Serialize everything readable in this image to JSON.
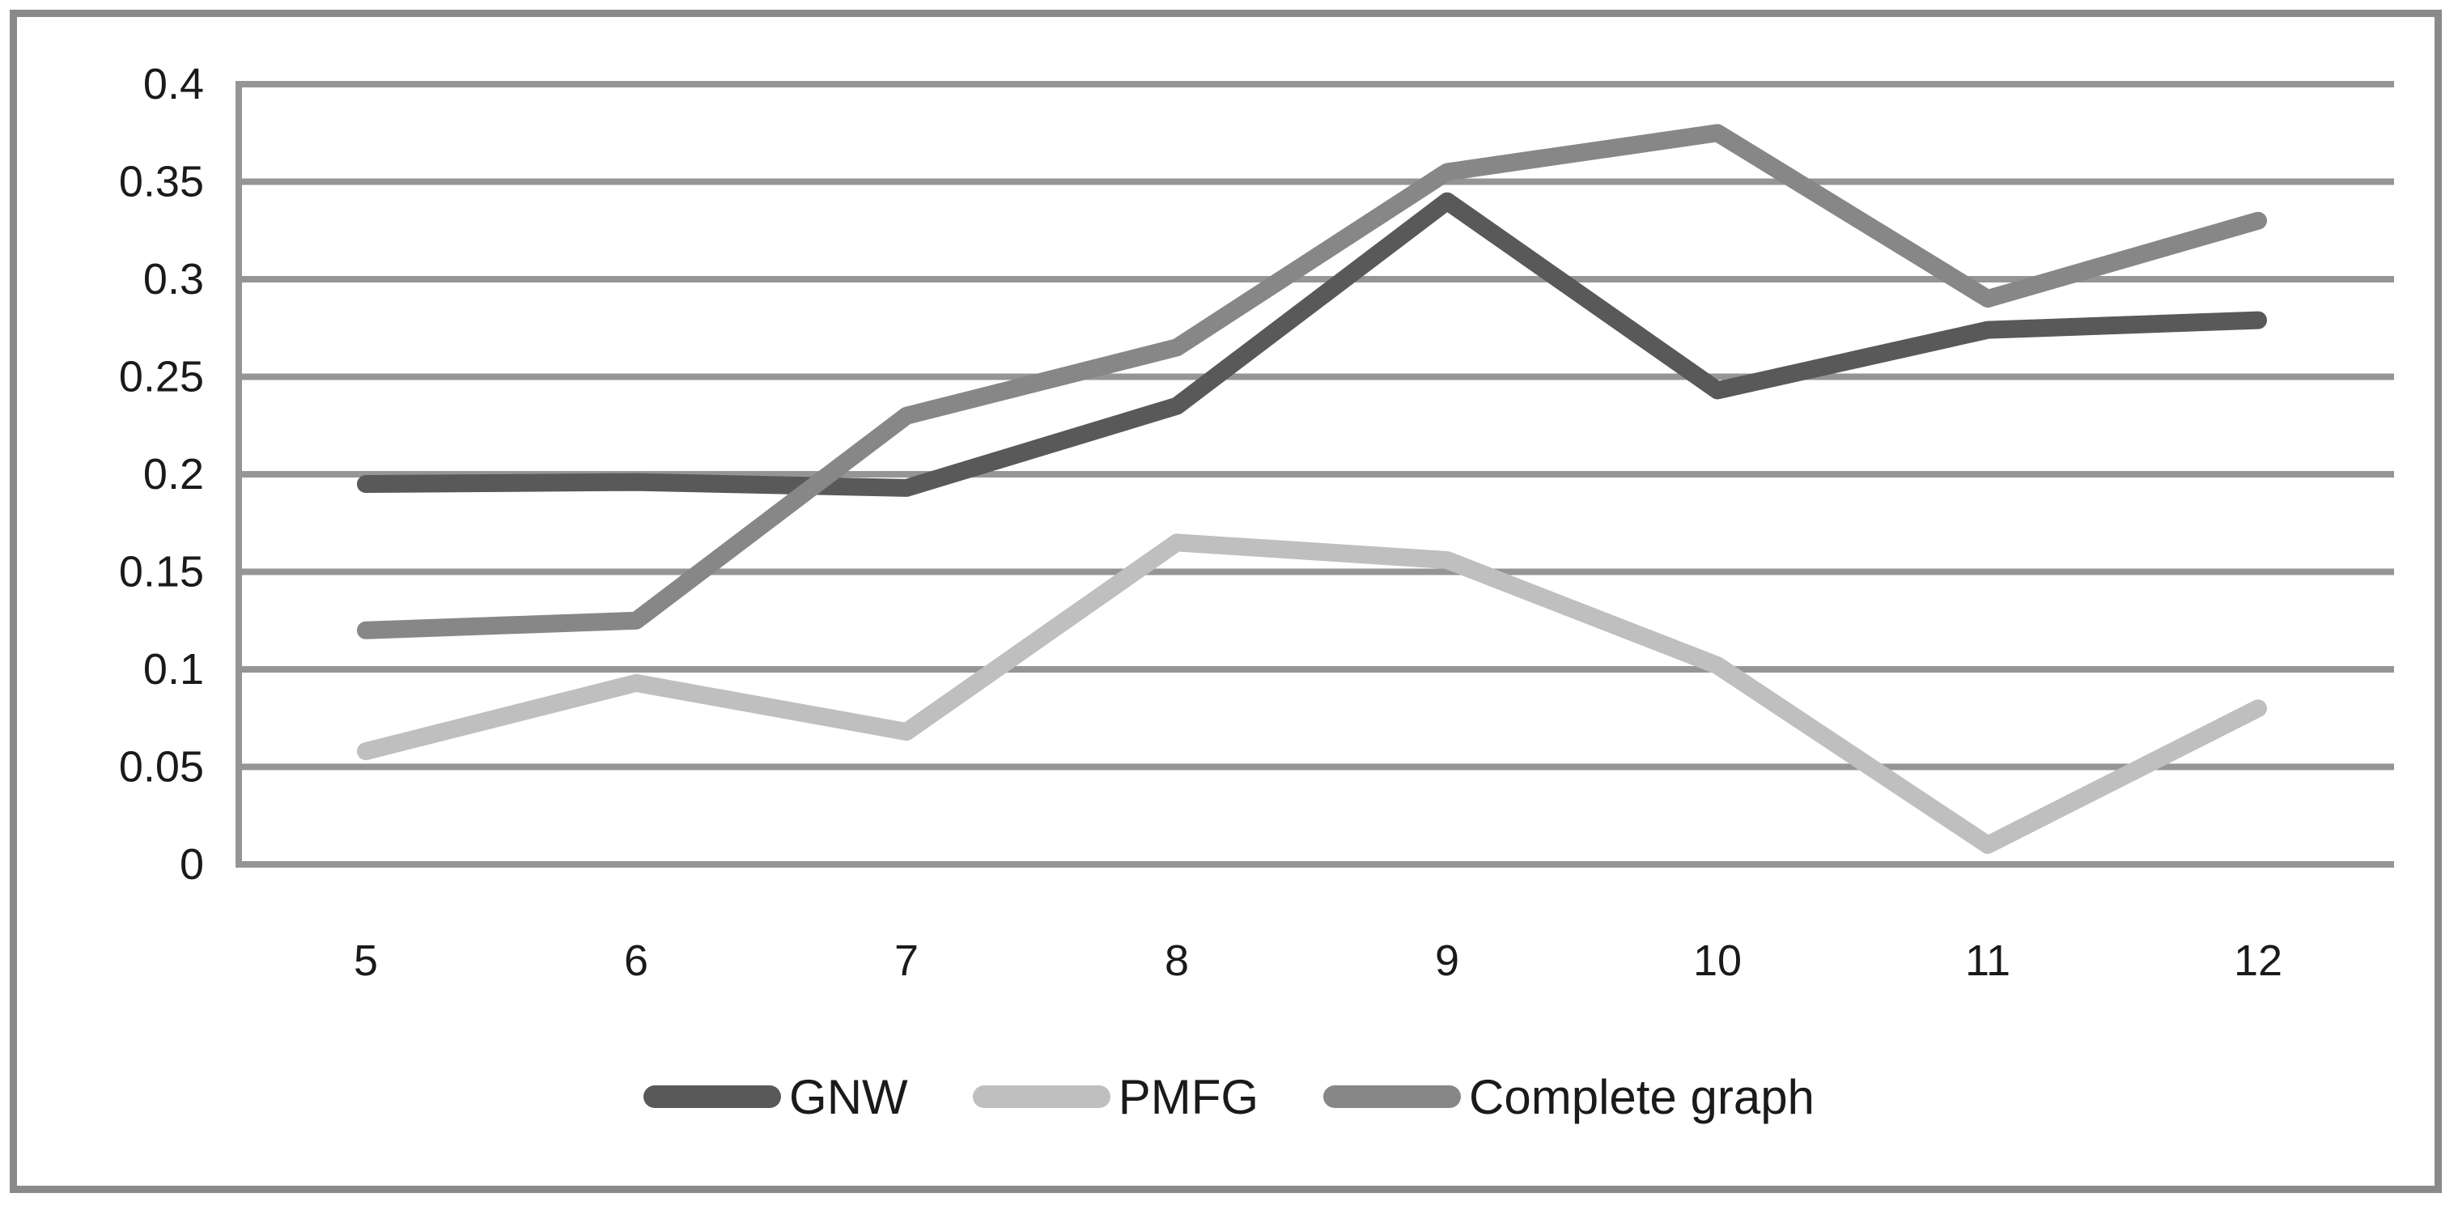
{
  "chart_data": {
    "type": "line",
    "x": [
      5,
      6,
      7,
      8,
      9,
      10,
      11,
      12
    ],
    "x_tick_labels": [
      "5",
      "6",
      "7",
      "8",
      "9",
      "10",
      "11",
      "12"
    ],
    "y_tick_labels": [
      "0",
      "0.05",
      "0.1",
      "0.15",
      "0.2",
      "0.25",
      "0.3",
      "0.35",
      "0.4"
    ],
    "ylim": [
      0,
      0.4
    ],
    "y_tick_step": 0.05,
    "grid": "horizontal",
    "legend_position": "bottom",
    "series": [
      {
        "name": "GNW",
        "color": "#595959",
        "values": [
          0.195,
          0.196,
          0.193,
          0.235,
          0.34,
          0.243,
          0.274,
          0.279
        ]
      },
      {
        "name": "PMFG",
        "color": "#bfbfbf",
        "values": [
          0.058,
          0.093,
          0.068,
          0.165,
          0.156,
          0.102,
          0.01,
          0.08
        ]
      },
      {
        "name": "Complete graph",
        "color": "#878787",
        "values": [
          0.12,
          0.125,
          0.23,
          0.265,
          0.355,
          0.375,
          0.29,
          0.33
        ]
      }
    ]
  },
  "frame": {
    "border_color": "#8a8a8a"
  },
  "axis": {
    "line_color": "#959595",
    "label_color": "#1a1a1a"
  }
}
